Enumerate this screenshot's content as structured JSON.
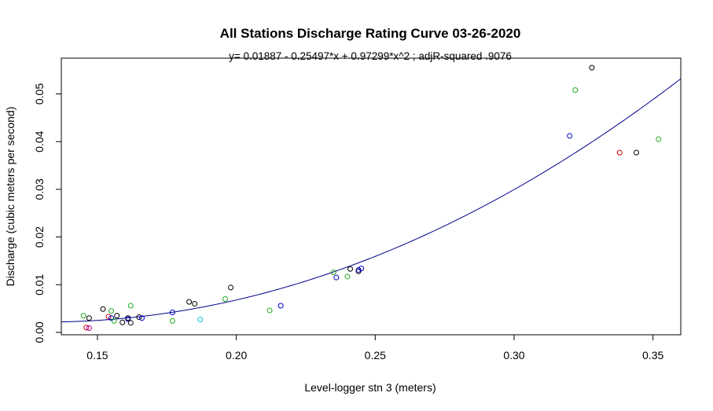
{
  "chart_data": {
    "type": "scatter",
    "title": "All Stations Discharge Rating Curve 03-26-2020",
    "subtitle": "y=  0.01887  - 0.25497*x + 0.97299*x^2 ; adjR-squared .9076",
    "xlabel": "Level-logger stn 3 (meters)",
    "ylabel": "Discharge (cubic meters per second)",
    "xlim": [
      0.137,
      0.36
    ],
    "ylim": [
      -0.0005,
      0.0575
    ],
    "x_ticks": [
      "0.15",
      "0.20",
      "0.25",
      "0.30",
      "0.35"
    ],
    "x_tick_values": [
      0.15,
      0.2,
      0.25,
      0.3,
      0.35
    ],
    "y_ticks": [
      "0.00",
      "0.01",
      "0.02",
      "0.03",
      "0.04",
      "0.05"
    ],
    "y_tick_values": [
      0.0,
      0.01,
      0.02,
      0.03,
      0.04,
      0.05
    ],
    "grid": false,
    "fit_curve": {
      "color": "#00008b",
      "coefficients": [
        0.01887,
        -0.25497,
        0.97299
      ]
    },
    "points": [
      {
        "x": 0.145,
        "y": 0.0035,
        "color": "#22aa22"
      },
      {
        "x": 0.146,
        "y": 0.001,
        "color": "#cc0000"
      },
      {
        "x": 0.147,
        "y": 0.0009,
        "color": "#aa00aa"
      },
      {
        "x": 0.147,
        "y": 0.003,
        "color": "#000000"
      },
      {
        "x": 0.152,
        "y": 0.0049,
        "color": "#000000"
      },
      {
        "x": 0.154,
        "y": 0.0033,
        "color": "#cc0000"
      },
      {
        "x": 0.155,
        "y": 0.003,
        "color": "#0000cc"
      },
      {
        "x": 0.155,
        "y": 0.0045,
        "color": "#22aa22"
      },
      {
        "x": 0.156,
        "y": 0.0024,
        "color": "#22aa22"
      },
      {
        "x": 0.157,
        "y": 0.0035,
        "color": "#000000"
      },
      {
        "x": 0.159,
        "y": 0.0021,
        "color": "#000000"
      },
      {
        "x": 0.161,
        "y": 0.003,
        "color": "#000000"
      },
      {
        "x": 0.161,
        "y": 0.0028,
        "color": "#0000cc"
      },
      {
        "x": 0.162,
        "y": 0.002,
        "color": "#000000"
      },
      {
        "x": 0.162,
        "y": 0.0056,
        "color": "#22aa22"
      },
      {
        "x": 0.165,
        "y": 0.0032,
        "color": "#000000"
      },
      {
        "x": 0.166,
        "y": 0.003,
        "color": "#0000cc"
      },
      {
        "x": 0.177,
        "y": 0.0042,
        "color": "#0000cc"
      },
      {
        "x": 0.177,
        "y": 0.0024,
        "color": "#22aa22"
      },
      {
        "x": 0.183,
        "y": 0.0064,
        "color": "#000000"
      },
      {
        "x": 0.185,
        "y": 0.006,
        "color": "#000000"
      },
      {
        "x": 0.187,
        "y": 0.0027,
        "color": "#00cccc"
      },
      {
        "x": 0.196,
        "y": 0.007,
        "color": "#22aa22"
      },
      {
        "x": 0.198,
        "y": 0.0094,
        "color": "#000000"
      },
      {
        "x": 0.212,
        "y": 0.0046,
        "color": "#22aa22"
      },
      {
        "x": 0.216,
        "y": 0.0056,
        "color": "#0000cc"
      },
      {
        "x": 0.235,
        "y": 0.0126,
        "color": "#22aa22"
      },
      {
        "x": 0.236,
        "y": 0.0115,
        "color": "#0000cc"
      },
      {
        "x": 0.24,
        "y": 0.0117,
        "color": "#22aa22"
      },
      {
        "x": 0.241,
        "y": 0.0133,
        "color": "#000000"
      },
      {
        "x": 0.244,
        "y": 0.0128,
        "color": "#000000"
      },
      {
        "x": 0.244,
        "y": 0.0131,
        "color": "#0000cc"
      },
      {
        "x": 0.245,
        "y": 0.0134,
        "color": "#0000cc"
      },
      {
        "x": 0.32,
        "y": 0.0412,
        "color": "#0000cc"
      },
      {
        "x": 0.322,
        "y": 0.0508,
        "color": "#22aa22"
      },
      {
        "x": 0.328,
        "y": 0.0555,
        "color": "#000000"
      },
      {
        "x": 0.338,
        "y": 0.0377,
        "color": "#cc0000"
      },
      {
        "x": 0.344,
        "y": 0.0377,
        "color": "#000000"
      },
      {
        "x": 0.352,
        "y": 0.0405,
        "color": "#22aa22"
      }
    ]
  }
}
